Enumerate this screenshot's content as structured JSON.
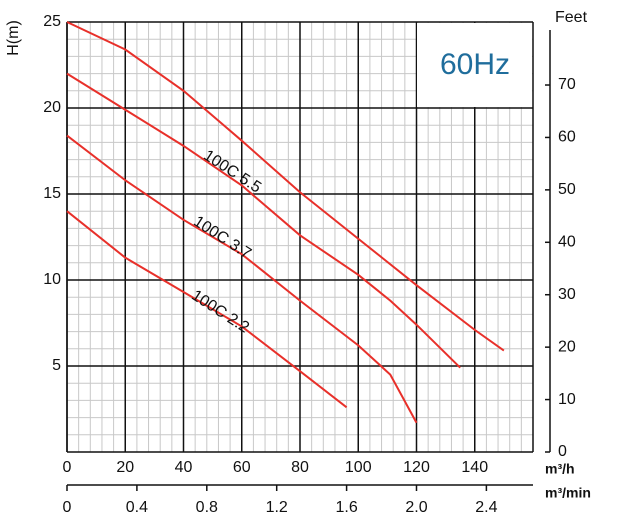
{
  "chart_data": {
    "type": "line",
    "y_label": "H(m)",
    "y2_label": "Feet",
    "x_label": "m³/h",
    "x2_label": "m³/min",
    "annotation": "60Hz",
    "annotation_color": "#1f6d9c",
    "xlim": [
      0,
      160
    ],
    "xticks": [
      0,
      20,
      40,
      60,
      80,
      100,
      120,
      140
    ],
    "x2lim": [
      0,
      2.6667
    ],
    "x2ticks": [
      {
        "value": 0,
        "label": "0"
      },
      0.4,
      0.8,
      1.2,
      1.6,
      {
        "value": 2.0,
        "label": "2.0"
      },
      2.4
    ],
    "ylim": [
      0,
      25
    ],
    "yticks": [
      5,
      10,
      15,
      20,
      25
    ],
    "y2lim": [
      0,
      82.02
    ],
    "y2ticks": [
      0,
      10,
      20,
      30,
      40,
      50,
      60,
      70
    ],
    "grid": true,
    "minor_grid": {
      "x": 4,
      "y": 1
    },
    "series": [
      {
        "name": null,
        "color": "#e8302a",
        "x": [
          0,
          20,
          40,
          60,
          80,
          100,
          120,
          140,
          150
        ],
        "values": [
          25,
          23.4,
          21.0,
          18.1,
          15.1,
          12.4,
          9.7,
          7.1,
          5.9
        ]
      },
      {
        "name": "100C 5.5",
        "color": "#e8302a",
        "x": [
          0,
          20,
          40,
          60,
          80,
          100,
          111,
          120,
          135
        ],
        "values": [
          22.0,
          19.9,
          17.8,
          15.5,
          12.6,
          10.3,
          8.8,
          7.4,
          4.9
        ]
      },
      {
        "name": "100C 3.7",
        "color": "#e8302a",
        "x": [
          0,
          20,
          40,
          60,
          80,
          100,
          111,
          120
        ],
        "values": [
          18.4,
          15.8,
          13.5,
          11.5,
          8.8,
          6.2,
          4.5,
          1.7
        ]
      },
      {
        "name": "100C 2.2",
        "color": "#e8302a",
        "x": [
          0,
          20,
          40,
          60,
          80,
          96
        ],
        "values": [
          14.0,
          11.3,
          9.3,
          7.3,
          4.7,
          2.6
        ]
      }
    ]
  }
}
